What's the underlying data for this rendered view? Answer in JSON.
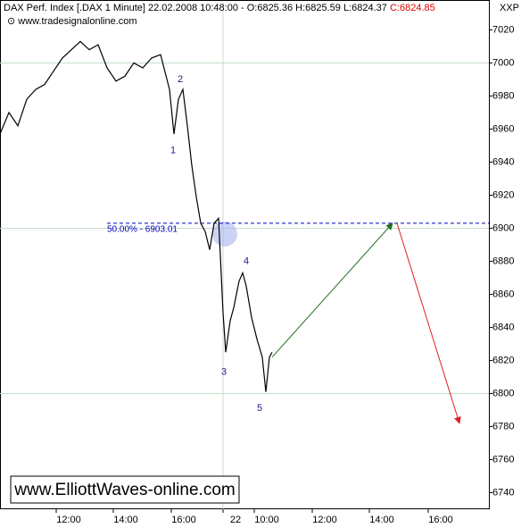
{
  "chart_data": {
    "type": "line",
    "header": "DAX Perf. Index [.DAX  1 Minute] 22.02.2008 10:48:00 - O:6825.36 H:6825.59 L:6824.37",
    "close_label": "C:6824.85",
    "source": "www.tradesignalonline.com",
    "corner_label": "XXP",
    "watermark": "www.ElliottWaves-online.com",
    "x": [
      0,
      10,
      20,
      30,
      40,
      50,
      60,
      70,
      80,
      90,
      100,
      110,
      120,
      130,
      140,
      150,
      160,
      170,
      180,
      190,
      195,
      200,
      205,
      210,
      215,
      220,
      225,
      230,
      235,
      240,
      245,
      250,
      253,
      258,
      262,
      268,
      272,
      276,
      282,
      288,
      294,
      298,
      302,
      305
    ],
    "series": [
      {
        "name": "DAX",
        "color": "#000000",
        "values": [
          6957,
          6970,
          6962,
          6978,
          6984,
          6987,
          6995,
          7003,
          7008,
          7013,
          7008,
          7011,
          6997,
          6989,
          6992,
          7000,
          6997,
          7003,
          7005,
          6984,
          6957,
          6978,
          6984,
          6962,
          6938,
          6919,
          6903,
          6898,
          6887,
          6903,
          6906,
          6849,
          6825,
          6844,
          6852,
          6868,
          6873,
          6865,
          6846,
          6833,
          6822,
          6801,
          6822,
          6825
        ]
      }
    ],
    "xlim": [
      0,
      548
    ],
    "xticks": [
      {
        "value": 63,
        "label": "12:00"
      },
      {
        "value": 127,
        "label": "14:00"
      },
      {
        "value": 192,
        "label": "16:00"
      },
      {
        "value": 250,
        "label": "22"
      },
      {
        "value": 285,
        "label": "10:00"
      },
      {
        "value": 350,
        "label": "12:00"
      },
      {
        "value": 414,
        "label": "14:00"
      },
      {
        "value": 480,
        "label": "16:00"
      }
    ],
    "ylim": [
      6730,
      7037
    ],
    "yticks": [
      6740,
      6760,
      6780,
      6800,
      6820,
      6840,
      6860,
      6880,
      6900,
      6920,
      6940,
      6960,
      6980,
      7000,
      7020
    ],
    "grid_y": [
      6800,
      6900,
      7000
    ],
    "grid_x": [
      250
    ],
    "grid_color": "#c8dcc8",
    "retracement": {
      "label": "50.00% - 6903.01",
      "value": 6903.01,
      "x": [
        120,
        548
      ],
      "color": "#0000c0"
    },
    "wave_labels": [
      {
        "label": "1",
        "x": 194,
        "y": 6947
      },
      {
        "label": "2",
        "x": 202,
        "y": 6990
      },
      {
        "label": "3",
        "x": 251,
        "y": 6813
      },
      {
        "label": "4",
        "x": 276,
        "y": 6880
      },
      {
        "label": "5",
        "x": 291,
        "y": 6791
      }
    ],
    "projections": [
      {
        "color": "#207020",
        "x": [
          305,
          440
        ],
        "values": [
          6822,
          6903
        ]
      },
      {
        "color": "#e02020",
        "x": [
          445,
          515
        ],
        "values": [
          6903,
          6782
        ]
      }
    ]
  }
}
